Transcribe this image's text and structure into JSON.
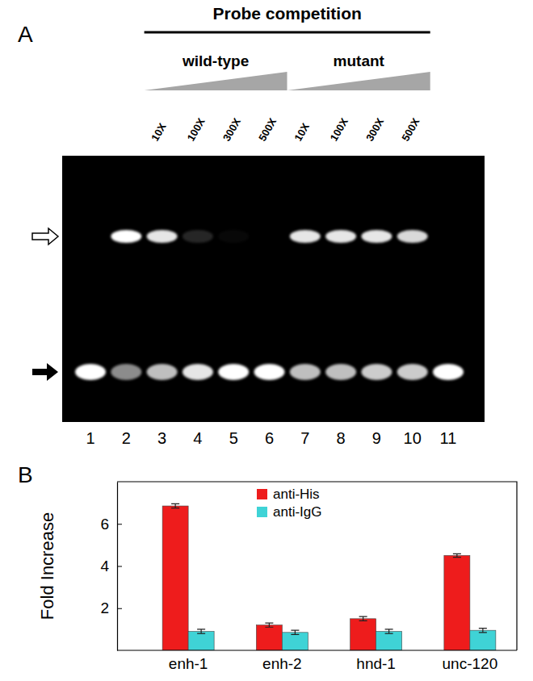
{
  "gel": {
    "panel_label": "A",
    "title": "Probe competition",
    "groups": [
      {
        "label": "wild-type",
        "lanes": [
          3,
          4,
          5,
          6
        ]
      },
      {
        "label": "mutant",
        "lanes": [
          7,
          8,
          9,
          10
        ]
      }
    ],
    "lanes": [
      {
        "number": 1,
        "competitor": null,
        "shifted_band": 0,
        "free_probe": 1
      },
      {
        "number": 2,
        "competitor": null,
        "shifted_band": 1,
        "free_probe": 0.55
      },
      {
        "number": 3,
        "competitor": "10X",
        "shifted_band": 0.9,
        "free_probe": 0.75
      },
      {
        "number": 4,
        "competitor": "100X",
        "shifted_band": 0.15,
        "free_probe": 0.9
      },
      {
        "number": 5,
        "competitor": "300X",
        "shifted_band": 0.03,
        "free_probe": 1
      },
      {
        "number": 6,
        "competitor": "500X",
        "shifted_band": 0,
        "free_probe": 1
      },
      {
        "number": 7,
        "competitor": "10X",
        "shifted_band": 0.9,
        "free_probe": 0.75
      },
      {
        "number": 8,
        "competitor": "100X",
        "shifted_band": 0.9,
        "free_probe": 0.75
      },
      {
        "number": 9,
        "competitor": "300X",
        "shifted_band": 0.9,
        "free_probe": 0.8
      },
      {
        "number": 10,
        "competitor": "500X",
        "shifted_band": 0.85,
        "free_probe": 0.8
      },
      {
        "number": 11,
        "competitor": null,
        "shifted_band": 0,
        "free_probe": 1
      }
    ]
  },
  "chart_data": {
    "type": "bar",
    "panel_label": "B",
    "y_label": "Fold Increase",
    "categories": [
      "enh-1",
      "enh-2",
      "hnd-1",
      "unc-120"
    ],
    "series": [
      {
        "name": "anti-His",
        "color": "#ee1c1c",
        "values": [
          6.85,
          1.2,
          1.5,
          4.5
        ],
        "errors": [
          0.1,
          0.1,
          0.1,
          0.08
        ]
      },
      {
        "name": "anti-IgG",
        "color": "#3fd3d6",
        "values": [
          0.9,
          0.85,
          0.9,
          0.95
        ],
        "errors": [
          0.1,
          0.1,
          0.1,
          0.1
        ]
      }
    ],
    "ylim": [
      0,
      8
    ],
    "yticks": [
      2,
      4,
      6
    ],
    "grid": false,
    "legend": "top"
  }
}
